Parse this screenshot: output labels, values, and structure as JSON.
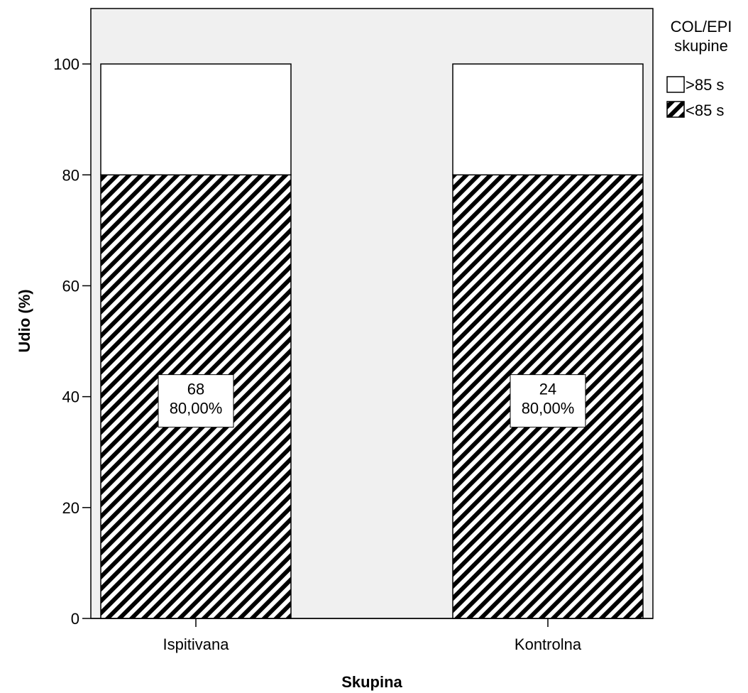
{
  "chart_data": {
    "type": "bar",
    "stacked": true,
    "title": "",
    "xlabel": "Skupina",
    "ylabel": "Udio (%)",
    "ylim": [
      0,
      110
    ],
    "yticks": [
      0,
      20,
      40,
      60,
      80,
      100
    ],
    "categories": [
      "Ispitivana",
      "Kontrolna"
    ],
    "legend": {
      "title_lines": [
        "COL/EPI",
        "skupine"
      ],
      "placement": "right"
    },
    "series": [
      {
        "name": "<85 s",
        "pattern": "hatched",
        "values": [
          80,
          80
        ],
        "data_labels": [
          [
            "68",
            "80,00%"
          ],
          [
            "24",
            "80,00%"
          ]
        ]
      },
      {
        "name": ">85 s",
        "pattern": "white",
        "values": [
          20,
          20
        ]
      }
    ],
    "colors": {
      "plot_background": "#f0f0f0",
      "hatch": "#000000",
      "bar_outline": "#000000"
    }
  }
}
